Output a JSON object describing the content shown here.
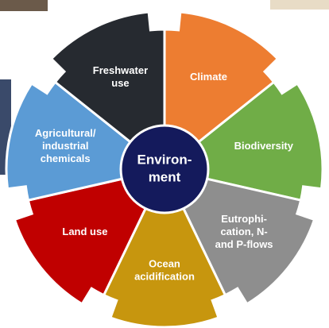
{
  "center": {
    "lines": [
      "Environ-",
      "ment"
    ],
    "color": "#141a5c"
  },
  "segments": [
    {
      "lines": [
        "Climate"
      ],
      "color": "#ed7d31"
    },
    {
      "lines": [
        "Biodiversity"
      ],
      "color": "#70ad47"
    },
    {
      "lines": [
        "Eutrophi-",
        "cation, N-",
        "and P-flows"
      ],
      "color": "#8e8e8e"
    },
    {
      "lines": [
        "Ocean",
        "acidification"
      ],
      "color": "#c7960e"
    },
    {
      "lines": [
        "Land use"
      ],
      "color": "#c00000"
    },
    {
      "lines": [
        "Agricultural/",
        "industrial",
        "chemicals"
      ],
      "color": "#5b9bd5"
    },
    {
      "lines": [
        "Freshwater",
        "use"
      ],
      "color": "#262a30"
    }
  ]
}
